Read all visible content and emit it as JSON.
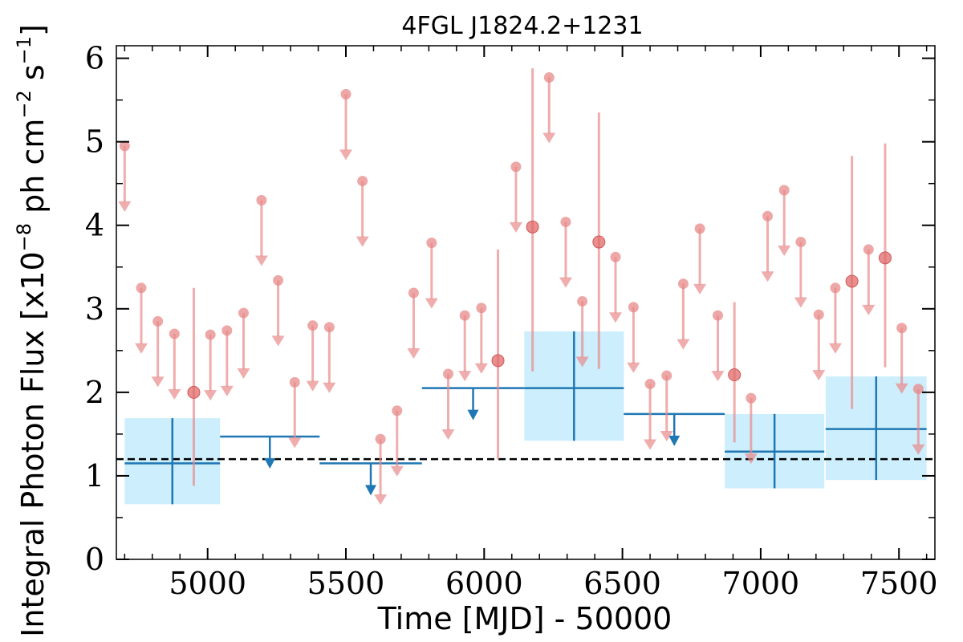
{
  "chart_data": {
    "type": "scatter",
    "title": "4FGL J1824.2+1231",
    "xlabel": "Time [MJD] - 50000",
    "ylabel": "Integral Photon Flux [x10",
    "ylabel_exp1": "−8",
    "ylabel_mid": " ph cm",
    "ylabel_exp2": "−2",
    "ylabel_mid2": " s",
    "ylabel_exp3": "−1",
    "ylabel_end": "]",
    "xlim": [
      4670,
      7630
    ],
    "ylim": [
      0,
      6.15
    ],
    "x_ticks": [
      5000,
      5500,
      6000,
      6500,
      7000,
      7500
    ],
    "x_tick_labels": [
      "5000",
      "5500",
      "6000",
      "6500",
      "7000",
      "7500"
    ],
    "y_ticks": [
      0,
      1,
      2,
      3,
      4,
      5,
      6
    ],
    "y_tick_labels": [
      "0",
      "1",
      "2",
      "3",
      "4",
      "5",
      "6"
    ],
    "reference_line": {
      "y": 1.2,
      "style": "dashed",
      "color": "#000000"
    },
    "colors": {
      "monthly": "#e88a8a",
      "binned": "#1f77b4",
      "binned_band": "#cdeefc"
    },
    "series": [
      {
        "kind": "monthly_upper_limits",
        "points": [
          {
            "x": 4700,
            "y": 4.95
          },
          {
            "x": 4760,
            "y": 3.25
          },
          {
            "x": 4820,
            "y": 2.85
          },
          {
            "x": 4880,
            "y": 2.7
          },
          {
            "x": 5010,
            "y": 2.69
          },
          {
            "x": 5070,
            "y": 2.74
          },
          {
            "x": 5130,
            "y": 2.95
          },
          {
            "x": 5195,
            "y": 4.3
          },
          {
            "x": 5255,
            "y": 3.34
          },
          {
            "x": 5315,
            "y": 2.12
          },
          {
            "x": 5380,
            "y": 2.8
          },
          {
            "x": 5440,
            "y": 2.78
          },
          {
            "x": 5500,
            "y": 5.57
          },
          {
            "x": 5560,
            "y": 4.53
          },
          {
            "x": 5625,
            "y": 1.44
          },
          {
            "x": 5685,
            "y": 1.78
          },
          {
            "x": 5745,
            "y": 3.19
          },
          {
            "x": 5810,
            "y": 3.79
          },
          {
            "x": 5870,
            "y": 2.22
          },
          {
            "x": 5930,
            "y": 2.92
          },
          {
            "x": 5990,
            "y": 3.01
          },
          {
            "x": 6115,
            "y": 4.7
          },
          {
            "x": 6235,
            "y": 5.77
          },
          {
            "x": 6295,
            "y": 4.04
          },
          {
            "x": 6355,
            "y": 3.09
          },
          {
            "x": 6475,
            "y": 3.62
          },
          {
            "x": 6540,
            "y": 3.02
          },
          {
            "x": 6600,
            "y": 2.1
          },
          {
            "x": 6660,
            "y": 2.2
          },
          {
            "x": 6720,
            "y": 3.3
          },
          {
            "x": 6780,
            "y": 3.96
          },
          {
            "x": 6845,
            "y": 2.92
          },
          {
            "x": 6965,
            "y": 1.93
          },
          {
            "x": 7025,
            "y": 4.11
          },
          {
            "x": 7085,
            "y": 4.42
          },
          {
            "x": 7145,
            "y": 3.8
          },
          {
            "x": 7210,
            "y": 2.93
          },
          {
            "x": 7270,
            "y": 3.25
          },
          {
            "x": 7390,
            "y": 3.71
          },
          {
            "x": 7510,
            "y": 2.77
          },
          {
            "x": 7570,
            "y": 2.04
          }
        ]
      },
      {
        "kind": "monthly_detections",
        "points": [
          {
            "x": 4950,
            "y": 2.0,
            "y_low": 0.88,
            "y_high": 3.25
          },
          {
            "x": 6050,
            "y": 2.38,
            "y_low": 1.2,
            "y_high": 3.71
          },
          {
            "x": 6175,
            "y": 3.98,
            "y_low": 2.25,
            "y_high": 5.88
          },
          {
            "x": 6415,
            "y": 3.8,
            "y_low": 2.28,
            "y_high": 5.35
          },
          {
            "x": 6905,
            "y": 2.21,
            "y_low": 1.4,
            "y_high": 3.08
          },
          {
            "x": 7330,
            "y": 3.33,
            "y_low": 1.8,
            "y_high": 4.83
          },
          {
            "x": 7450,
            "y": 3.61,
            "y_low": 2.3,
            "y_high": 4.98
          }
        ]
      },
      {
        "kind": "binned_detections",
        "bins": [
          {
            "x_start": 4700,
            "x_end": 5045,
            "y": 1.15,
            "y_low": 0.66,
            "y_high": 1.69
          },
          {
            "x_start": 6145,
            "x_end": 6505,
            "y": 2.05,
            "y_low": 1.42,
            "y_high": 2.73
          },
          {
            "x_start": 6870,
            "x_end": 7230,
            "y": 1.29,
            "y_low": 0.85,
            "y_high": 1.74
          },
          {
            "x_start": 7235,
            "x_end": 7600,
            "y": 1.56,
            "y_low": 0.95,
            "y_high": 2.19
          }
        ]
      },
      {
        "kind": "binned_upper_limits",
        "bins": [
          {
            "x_start": 5045,
            "x_end": 5405,
            "y": 1.47
          },
          {
            "x_start": 5405,
            "x_end": 5775,
            "y": 1.15
          },
          {
            "x_start": 5775,
            "x_end": 6145,
            "y": 2.05
          },
          {
            "x_start": 6505,
            "x_end": 6870,
            "y": 1.74
          }
        ]
      }
    ]
  }
}
